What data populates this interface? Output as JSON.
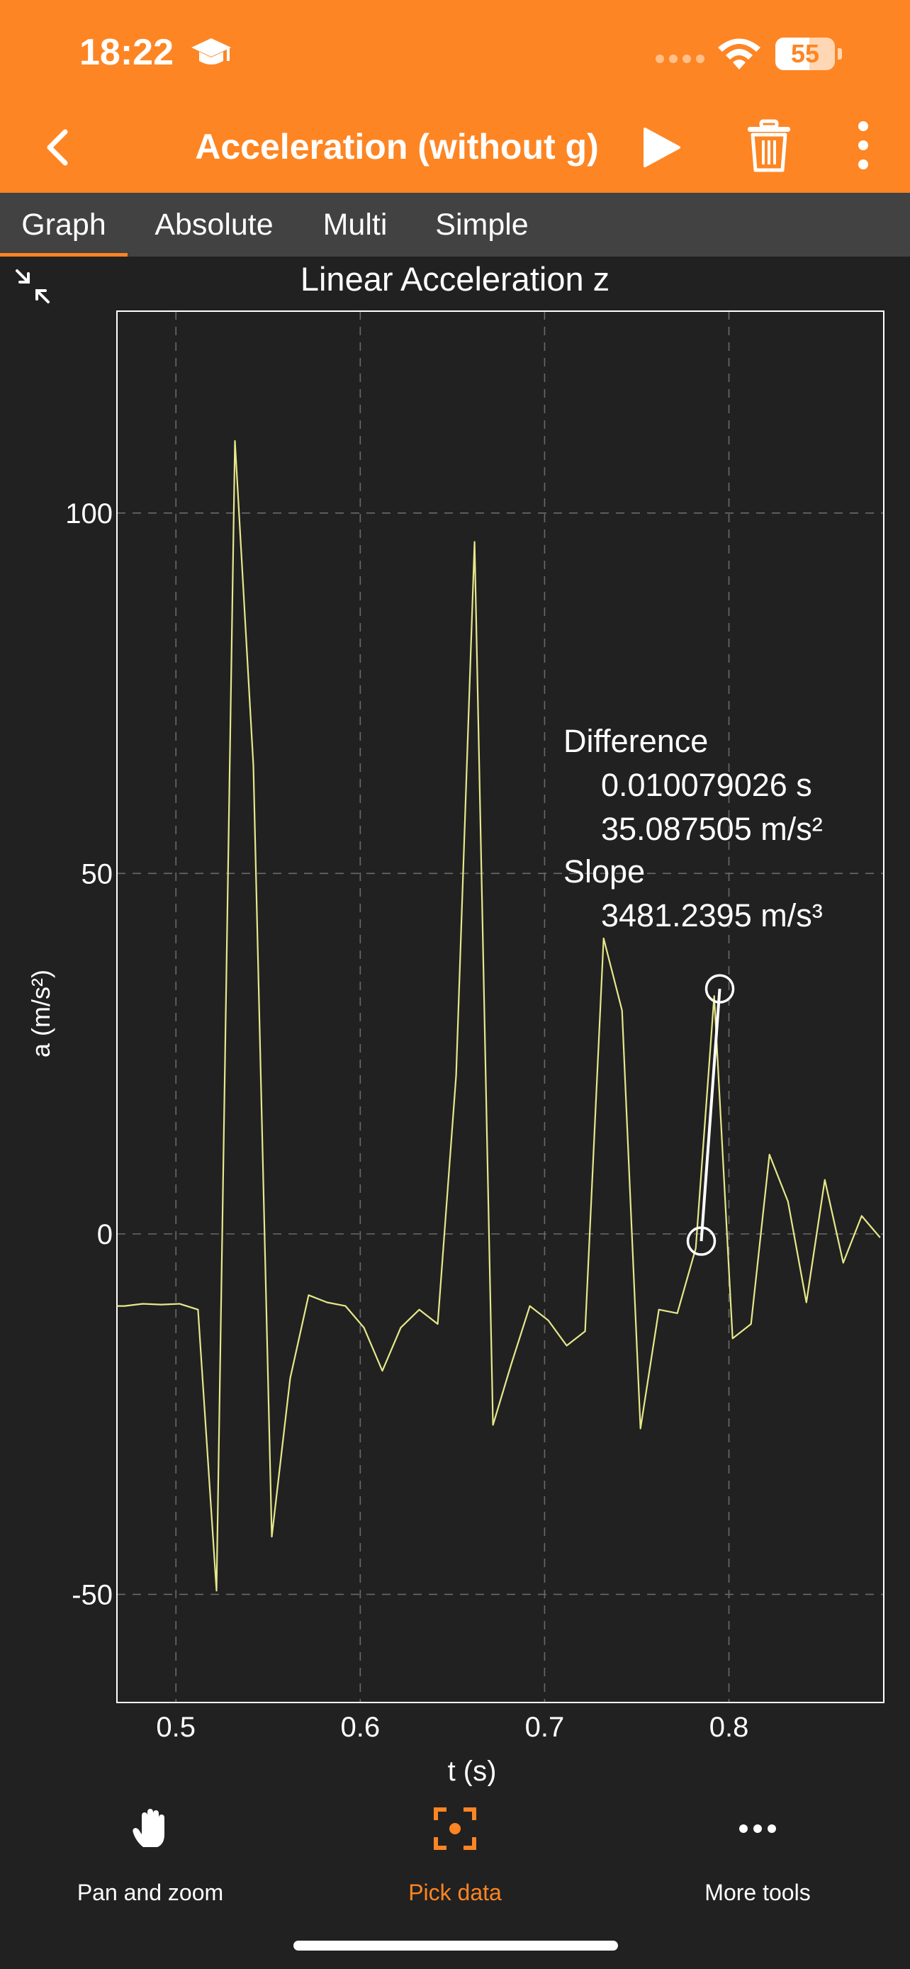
{
  "status_bar": {
    "time": "18:22",
    "battery": "55",
    "icons": [
      "graduation-cap-icon",
      "cellular-dots-icon",
      "wifi-icon",
      "battery-icon"
    ]
  },
  "header": {
    "title": "Acceleration (without g)",
    "icons": [
      "back-chevron-icon",
      "play-icon",
      "trash-icon",
      "more-vertical-icon"
    ],
    "accent_color": "#fe8523"
  },
  "tabs": [
    {
      "label": "Graph",
      "active": true
    },
    {
      "label": "Absolute",
      "active": false
    },
    {
      "label": "Multi",
      "active": false
    },
    {
      "label": "Simple",
      "active": false
    }
  ],
  "graph": {
    "title": "Linear Acceleration z",
    "annotation": {
      "difference_label": "Difference",
      "difference_time": "0.010079026 s",
      "difference_accel": "35.087505 m/s²",
      "slope_label": "Slope",
      "slope_value": "3481.2395 m/s³"
    }
  },
  "chart_data": {
    "type": "line",
    "title": "Linear Acceleration z",
    "xlabel": "t (s)",
    "ylabel": "a (m/s²)",
    "xlim": [
      0.468,
      0.884
    ],
    "ylim": [
      -65,
      128
    ],
    "xticks": [
      0.5,
      0.6,
      0.7,
      0.8
    ],
    "yticks": [
      -50,
      0,
      50,
      100
    ],
    "grid": true,
    "line_color": "#e6e88a",
    "series": [
      {
        "x": [
          0.468,
          0.472,
          0.482,
          0.492,
          0.502,
          0.512,
          0.522,
          0.532,
          0.542,
          0.552,
          0.562,
          0.572,
          0.582,
          0.592,
          0.602,
          0.612,
          0.622,
          0.632,
          0.642,
          0.652,
          0.662,
          0.672,
          0.682,
          0.692,
          0.702,
          0.712,
          0.722,
          0.732,
          0.742,
          0.752,
          0.762,
          0.772,
          0.782,
          0.792,
          0.802,
          0.812,
          0.822,
          0.832,
          0.842,
          0.852,
          0.862,
          0.872,
          0.882
        ],
        "y": [
          -10,
          -10,
          -9.7,
          -9.8,
          -9.7,
          -10.5,
          -49.5,
          110,
          65,
          -42,
          -20,
          -8.5,
          -9.5,
          -10,
          -13,
          -19,
          -13,
          -10.5,
          -12.5,
          22,
          96,
          -26.5,
          -18,
          -10,
          -12,
          -15.5,
          -13.5,
          41,
          31,
          -27,
          -10.5,
          -11,
          -2,
          33,
          -14.5,
          -12.5,
          11,
          4.5,
          -9.5,
          7.5,
          -4,
          2.5,
          -0.5
        ]
      }
    ],
    "markers": [
      {
        "x": 0.785,
        "y": -1
      },
      {
        "x": 0.795,
        "y": 34
      }
    ]
  },
  "bottom_nav": [
    {
      "label": "Pan and zoom",
      "icon": "hand-icon",
      "active": false
    },
    {
      "label": "Pick data",
      "icon": "target-icon",
      "active": true
    },
    {
      "label": "More tools",
      "icon": "more-horizontal-icon",
      "active": false
    }
  ]
}
